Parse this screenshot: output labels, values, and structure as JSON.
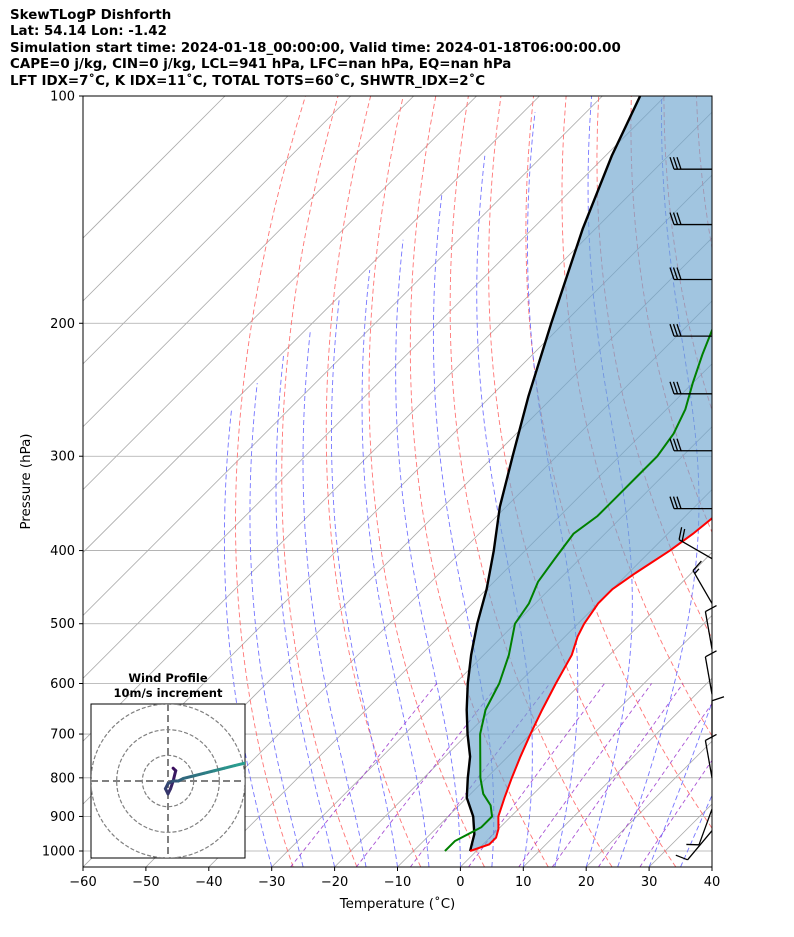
{
  "header": {
    "line1": "SkewTLogP Dishforth",
    "line2": "Lat: 54.14   Lon: -1.42",
    "line3": "Simulation start time: 2024-01-18_00:00:00, Valid time: 2024-01-18T06:00:00.00",
    "line4": "CAPE=0 j/kg, CIN=0 j/kg, LCL=941 hPa, LFC=nan hPa, EQ=nan hPa",
    "line5": "LFT IDX=7˚C, K IDX=11˚C, TOTAL TOTS=60˚C, SHWTR_IDX=2˚C"
  },
  "chart_data": [
    {
      "type": "line",
      "title": "",
      "xlabel": "Temperature (˚C)",
      "ylabel": "Pressure (hPa)",
      "xlim": [
        -60,
        40
      ],
      "ylim": [
        1050,
        100
      ],
      "y_scale": "log",
      "skew": "45 degrees",
      "x_ticks": [
        "−60",
        "−50",
        "−40",
        "−30",
        "−20",
        "−10",
        "0",
        "10",
        "20",
        "30",
        "40"
      ],
      "x_tick_values": [
        -60,
        -50,
        -40,
        -30,
        -20,
        -10,
        0,
        10,
        20,
        30,
        40
      ],
      "y_ticks": [
        "100",
        "200",
        "300",
        "400",
        "500",
        "600",
        "700",
        "800",
        "900",
        "1000"
      ],
      "y_tick_values": [
        100,
        200,
        300,
        400,
        500,
        600,
        700,
        800,
        900,
        1000
      ],
      "grid": true,
      "colors": {
        "temperature": "#ff0000",
        "dewpoint": "#008000",
        "parcel": "#000000",
        "cape_fill": "#6fa6cf",
        "dry_adiabats": "#ff6666",
        "moist_adiabats": "#6666ff",
        "mixing_ratio": "#9933cc",
        "isotherms": "#aaaaaa"
      },
      "series": [
        {
          "points": [
            [
              1000,
              -1
            ],
            [
              980,
              1
            ],
            [
              960,
              1
            ],
            [
              935,
              0
            ],
            [
              900,
              -2
            ],
            [
              850,
              -4
            ],
            [
              800,
              -6
            ],
            [
              750,
              -8
            ],
            [
              700,
              -10
            ],
            [
              650,
              -12
            ],
            [
              600,
              -14
            ],
            [
              550,
              -16
            ],
            [
              520,
              -18
            ],
            [
              500,
              -19
            ],
            [
              470,
              -20
            ],
            [
              450,
              -20
            ],
            [
              430,
              -19
            ],
            [
              400,
              -17
            ],
            [
              380,
              -16
            ],
            [
              350,
              -15
            ],
            [
              320,
              -15
            ],
            [
              300,
              -15
            ],
            [
              280,
              -15
            ],
            [
              260,
              -15
            ],
            [
              240,
              -15
            ],
            [
              220,
              -15
            ],
            [
              200,
              -15
            ],
            [
              180,
              -15
            ],
            [
              160,
              -15
            ],
            [
              140,
              -15
            ],
            [
              120,
              -15
            ],
            [
              110,
              -15
            ],
            [
              100,
              -15
            ]
          ]
        },
        {
          "points": [
            [
              1000,
              -5
            ],
            [
              970,
              -5
            ],
            [
              950,
              -4
            ],
            [
              930,
              -3
            ],
            [
              900,
              -3
            ],
            [
              870,
              -5
            ],
            [
              840,
              -8
            ],
            [
              800,
              -11
            ],
            [
              700,
              -18
            ],
            [
              650,
              -21
            ],
            [
              600,
              -23
            ],
            [
              550,
              -26
            ],
            [
              500,
              -30
            ],
            [
              470,
              -31
            ],
            [
              440,
              -33
            ],
            [
              410,
              -34
            ],
            [
              380,
              -35
            ],
            [
              360,
              -34
            ],
            [
              340,
              -34
            ],
            [
              320,
              -34
            ],
            [
              300,
              -34
            ],
            [
              280,
              -35
            ],
            [
              260,
              -37
            ],
            [
              240,
              -40
            ],
            [
              220,
              -43
            ],
            [
              200,
              -46
            ],
            [
              180,
              -48
            ],
            [
              160,
              -48
            ],
            [
              140,
              -48
            ],
            [
              120,
              -48
            ],
            [
              110,
              -48
            ],
            [
              100,
              -48
            ]
          ]
        },
        {
          "points": [
            [
              1000,
              -1
            ],
            [
              950,
              -3
            ],
            [
              900,
              -6
            ],
            [
              850,
              -10
            ],
            [
              800,
              -13
            ],
            [
              750,
              -16
            ],
            [
              700,
              -20
            ],
            [
              650,
              -24
            ],
            [
              600,
              -28
            ],
            [
              550,
              -32
            ],
            [
              500,
              -36
            ],
            [
              450,
              -40
            ],
            [
              400,
              -45
            ],
            [
              350,
              -51
            ],
            [
              300,
              -57
            ],
            [
              250,
              -64
            ],
            [
              200,
              -72
            ],
            [
              150,
              -82
            ],
            [
              120,
              -89
            ],
            [
              100,
              -94
            ]
          ]
        }
      ],
      "wind_barbs": {
        "points": [
          {
            "p": 125,
            "speed": 30,
            "dir": 270
          },
          {
            "p": 148,
            "speed": 30,
            "dir": 270
          },
          {
            "p": 175,
            "speed": 30,
            "dir": 270
          },
          {
            "p": 208,
            "speed": 30,
            "dir": 270
          },
          {
            "p": 248,
            "speed": 30,
            "dir": 270
          },
          {
            "p": 295,
            "speed": 30,
            "dir": 270
          },
          {
            "p": 352,
            "speed": 30,
            "dir": 270
          },
          {
            "p": 410,
            "speed": 20,
            "dir": 300
          },
          {
            "p": 470,
            "speed": 15,
            "dir": 330
          },
          {
            "p": 540,
            "speed": 10,
            "dir": 350
          },
          {
            "p": 620,
            "speed": 10,
            "dir": 350
          },
          {
            "p": 710,
            "speed": 10,
            "dir": 0
          },
          {
            "p": 800,
            "speed": 10,
            "dir": 350
          },
          {
            "p": 880,
            "speed": 10,
            "dir": 200
          },
          {
            "p": 940,
            "speed": 10,
            "dir": 220
          }
        ]
      }
    },
    {
      "type": "line",
      "title": "Wind Profile",
      "subtitle": "10m/s increment",
      "xlim": [
        -30,
        30
      ],
      "ylim": [
        -30,
        30
      ],
      "grid": true,
      "colors": {
        "ring": "#808080",
        "hodo_low": "#3a0e5e",
        "hodo_high": "#2a9d8f"
      },
      "series": [
        {
          "points": [
            [
              2,
              5
            ],
            [
              3,
              4
            ],
            [
              2,
              0
            ],
            [
              1,
              -3
            ],
            [
              0,
              -5
            ],
            [
              -1,
              -3
            ],
            [
              0,
              -1
            ],
            [
              2,
              0
            ],
            [
              4,
              0
            ],
            [
              6,
              1
            ],
            [
              10,
              2
            ],
            [
              14,
              3
            ],
            [
              18,
              4
            ],
            [
              22,
              5
            ],
            [
              26,
              6
            ],
            [
              30,
              7
            ]
          ]
        }
      ]
    }
  ]
}
